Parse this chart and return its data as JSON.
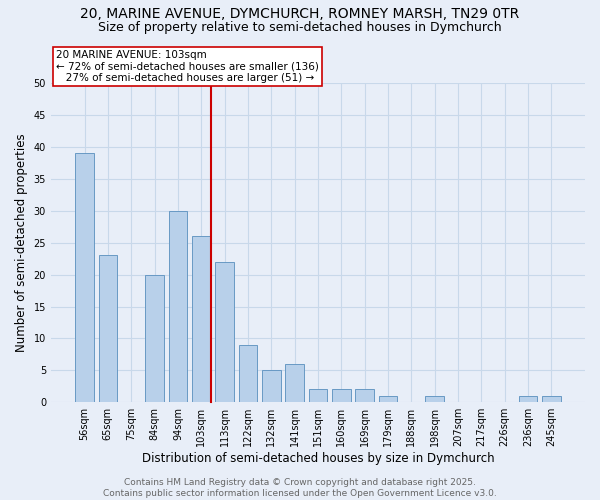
{
  "title_line1": "20, MARINE AVENUE, DYMCHURCH, ROMNEY MARSH, TN29 0TR",
  "title_line2": "Size of property relative to semi-detached houses in Dymchurch",
  "xlabel": "Distribution of semi-detached houses by size in Dymchurch",
  "ylabel": "Number of semi-detached properties",
  "categories": [
    "56sqm",
    "65sqm",
    "75sqm",
    "84sqm",
    "94sqm",
    "103sqm",
    "113sqm",
    "122sqm",
    "132sqm",
    "141sqm",
    "151sqm",
    "160sqm",
    "169sqm",
    "179sqm",
    "188sqm",
    "198sqm",
    "207sqm",
    "217sqm",
    "226sqm",
    "236sqm",
    "245sqm"
  ],
  "values": [
    39,
    23,
    0,
    20,
    30,
    26,
    22,
    9,
    5,
    6,
    2,
    2,
    2,
    1,
    0,
    1,
    0,
    0,
    0,
    1,
    1
  ],
  "bar_color": "#b8d0ea",
  "bar_edge_color": "#6899c4",
  "highlight_index": 5,
  "highlight_line_color": "#cc0000",
  "annotation_text": "20 MARINE AVENUE: 103sqm\n← 72% of semi-detached houses are smaller (136)\n   27% of semi-detached houses are larger (51) →",
  "annotation_box_color": "#ffffff",
  "annotation_box_edge_color": "#cc0000",
  "ylim": [
    0,
    50
  ],
  "yticks": [
    0,
    5,
    10,
    15,
    20,
    25,
    30,
    35,
    40,
    45,
    50
  ],
  "grid_color": "#c8d8ea",
  "background_color": "#e8eef8",
  "footer_text": "Contains HM Land Registry data © Crown copyright and database right 2025.\nContains public sector information licensed under the Open Government Licence v3.0.",
  "title_fontsize": 10,
  "subtitle_fontsize": 9,
  "label_fontsize": 8.5,
  "tick_fontsize": 7,
  "footer_fontsize": 6.5,
  "annot_fontsize": 7.5
}
